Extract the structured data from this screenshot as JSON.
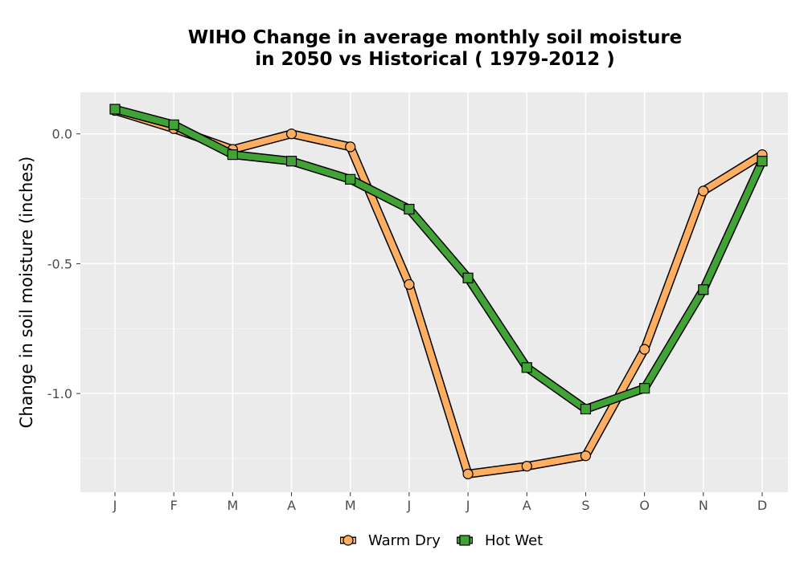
{
  "chart_data": {
    "type": "line",
    "title_line1": "WIHO  Change in average monthly soil moisture",
    "title_line2": "in 2050 vs Historical ( 1979-2012 )",
    "xlabel": "",
    "ylabel": "Change in soil moisture (inches)",
    "categories": [
      "J",
      "F",
      "M",
      "A",
      "M",
      "J",
      "J",
      "A",
      "S",
      "O",
      "N",
      "D"
    ],
    "y_ticks": [
      0.0,
      -0.5,
      -1.0
    ],
    "y_tick_labels": [
      "0.0",
      "-0.5",
      "-1.0"
    ],
    "ylim": [
      -1.38,
      0.16
    ],
    "grid": true,
    "legend_position": "bottom",
    "series": [
      {
        "name": "Warm Dry",
        "marker": "circle",
        "color": "#FDAE61",
        "values": [
          0.09,
          0.02,
          -0.06,
          0.0,
          -0.05,
          -0.58,
          -1.31,
          -1.28,
          -1.24,
          -0.83,
          -0.22,
          -0.08
        ]
      },
      {
        "name": "Hot Wet",
        "marker": "square",
        "color": "#41A336",
        "values": [
          0.095,
          0.035,
          -0.08,
          -0.105,
          -0.175,
          -0.29,
          -0.555,
          -0.9,
          -1.06,
          -0.98,
          -0.6,
          -0.105
        ]
      }
    ]
  },
  "colors": {
    "panel_background": "#EBEBEB",
    "grid_major": "#FFFFFF",
    "outline": "#000000"
  }
}
